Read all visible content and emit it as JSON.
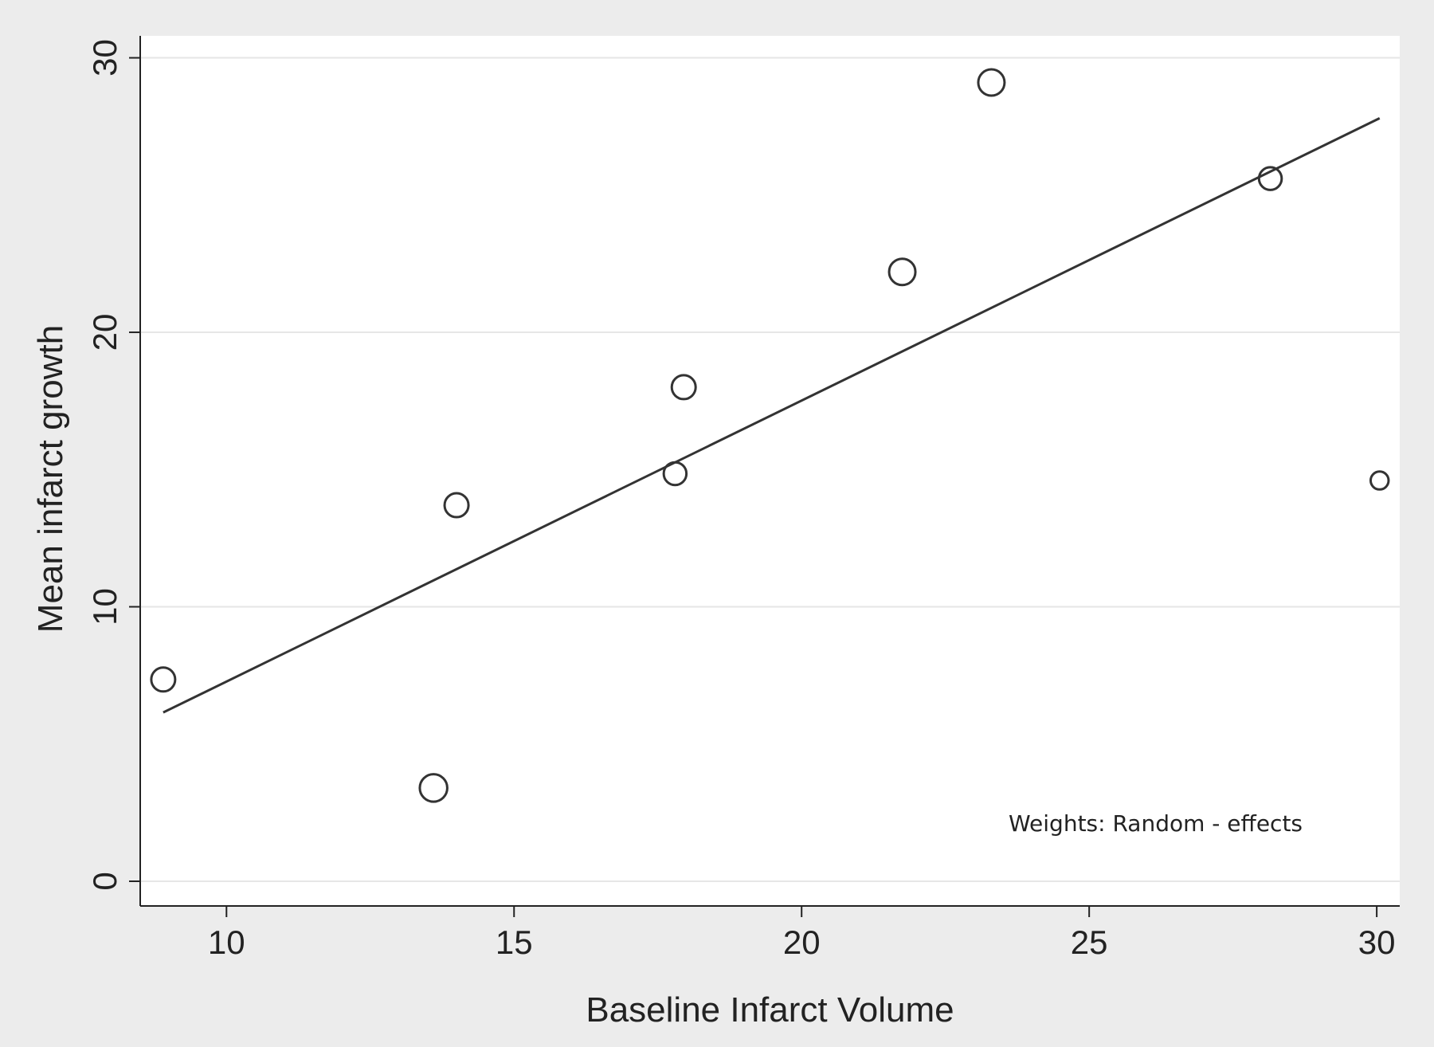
{
  "chart_data": {
    "type": "scatter",
    "title": "",
    "xlabel": "Baseline Infarct Volume",
    "ylabel": "Mean infarct growth",
    "xlim": [
      8.5,
      30.4
    ],
    "ylim": [
      -0.9,
      30.8
    ],
    "x_ticks": [
      10,
      15,
      20,
      25,
      30
    ],
    "y_ticks": [
      0,
      10,
      20,
      30
    ],
    "grid": "horizontal",
    "background": "#ececec",
    "plot_background": "#ffffff",
    "marker": "hollow-circle",
    "marker_color": "#333333",
    "points": [
      {
        "x": 8.9,
        "y": 7.35,
        "weight": 1.0
      },
      {
        "x": 13.6,
        "y": 3.4,
        "weight": 1.15
      },
      {
        "x": 14.0,
        "y": 13.7,
        "weight": 1.0
      },
      {
        "x": 17.8,
        "y": 14.85,
        "weight": 0.95
      },
      {
        "x": 17.95,
        "y": 18.0,
        "weight": 1.0
      },
      {
        "x": 21.75,
        "y": 22.2,
        "weight": 1.1
      },
      {
        "x": 23.3,
        "y": 29.1,
        "weight": 1.1
      },
      {
        "x": 28.15,
        "y": 25.6,
        "weight": 0.95
      },
      {
        "x": 30.05,
        "y": 14.6,
        "weight": 0.75
      }
    ],
    "fit_line": {
      "x": [
        8.9,
        30.05
      ],
      "y": [
        6.15,
        27.8
      ]
    },
    "annotation": "Weights: Random - effects"
  }
}
